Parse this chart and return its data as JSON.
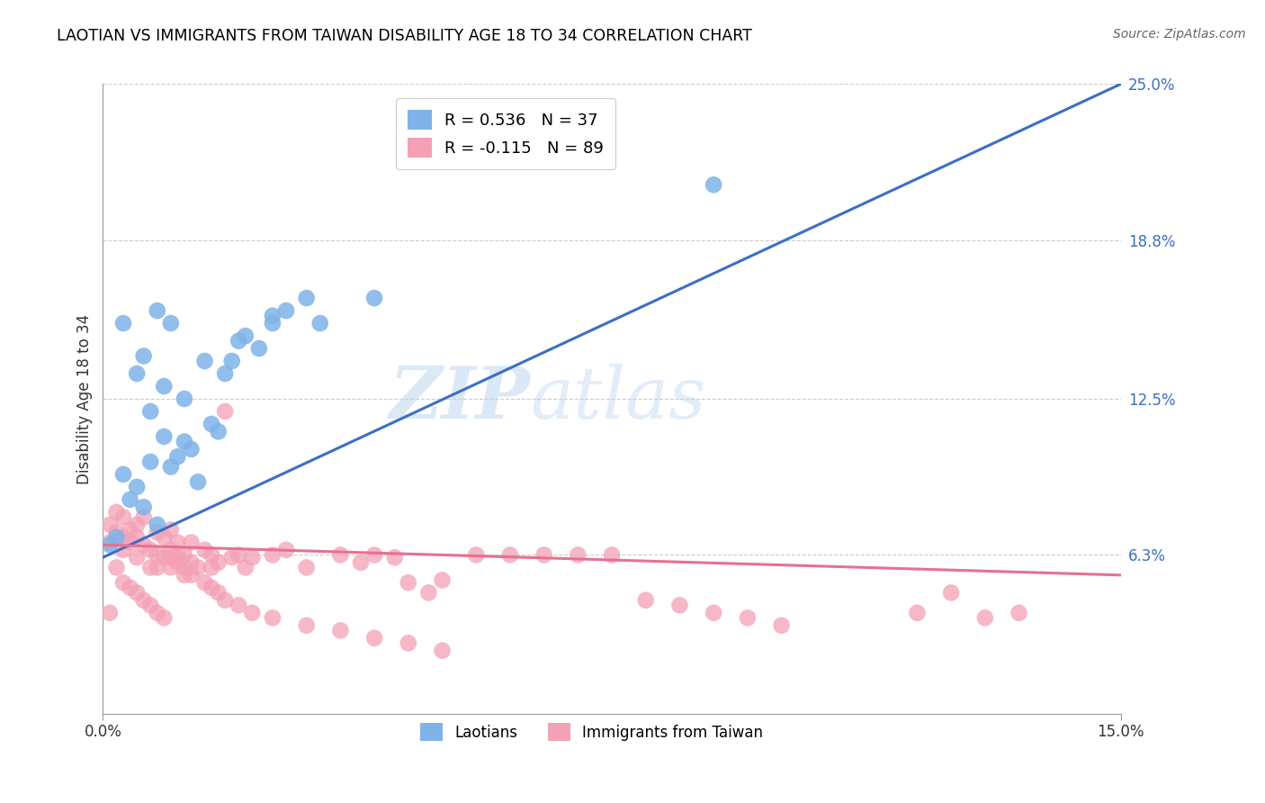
{
  "title": "LAOTIAN VS IMMIGRANTS FROM TAIWAN DISABILITY AGE 18 TO 34 CORRELATION CHART",
  "source": "Source: ZipAtlas.com",
  "ylabel": "Disability Age 18 to 34",
  "x_min": 0.0,
  "x_max": 0.15,
  "y_min": 0.0,
  "y_max": 0.25,
  "y_tick_labels_right": [
    "25.0%",
    "18.8%",
    "12.5%",
    "6.3%"
  ],
  "y_tick_vals_right": [
    0.25,
    0.188,
    0.125,
    0.063
  ],
  "watermark": "ZIPatlas",
  "blue_R": 0.536,
  "blue_N": 37,
  "pink_R": -0.115,
  "pink_N": 89,
  "blue_color": "#7FB3E8",
  "pink_color": "#F4A0B5",
  "blue_line_color": "#3B6FC4",
  "pink_line_color": "#E87090",
  "legend_blue_label": "R = 0.536   N = 37",
  "legend_pink_label": "R = -0.115   N = 89",
  "legend_label_laotians": "Laotians",
  "legend_label_taiwan": "Immigrants from Taiwan",
  "blue_line_x0": 0.0,
  "blue_line_y0": 0.062,
  "blue_line_x1": 0.15,
  "blue_line_y1": 0.25,
  "pink_line_x0": 0.0,
  "pink_line_y0": 0.067,
  "pink_line_x1": 0.15,
  "pink_line_y1": 0.055,
  "blue_x": [
    0.001,
    0.002,
    0.003,
    0.004,
    0.005,
    0.006,
    0.007,
    0.008,
    0.009,
    0.01,
    0.011,
    0.012,
    0.013,
    0.014,
    0.016,
    0.017,
    0.018,
    0.019,
    0.021,
    0.023,
    0.025,
    0.027,
    0.03,
    0.032,
    0.003,
    0.005,
    0.007,
    0.009,
    0.012,
    0.015,
    0.02,
    0.025,
    0.008,
    0.01,
    0.006,
    0.04,
    0.09
  ],
  "blue_y": [
    0.067,
    0.07,
    0.095,
    0.085,
    0.09,
    0.082,
    0.1,
    0.075,
    0.11,
    0.098,
    0.102,
    0.108,
    0.105,
    0.092,
    0.115,
    0.112,
    0.135,
    0.14,
    0.15,
    0.145,
    0.155,
    0.16,
    0.165,
    0.155,
    0.155,
    0.135,
    0.12,
    0.13,
    0.125,
    0.14,
    0.148,
    0.158,
    0.16,
    0.155,
    0.142,
    0.165,
    0.21
  ],
  "pink_x": [
    0.001,
    0.001,
    0.002,
    0.002,
    0.003,
    0.003,
    0.003,
    0.004,
    0.004,
    0.005,
    0.005,
    0.005,
    0.006,
    0.006,
    0.007,
    0.007,
    0.008,
    0.008,
    0.008,
    0.009,
    0.009,
    0.01,
    0.01,
    0.01,
    0.011,
    0.011,
    0.012,
    0.012,
    0.013,
    0.013,
    0.014,
    0.015,
    0.016,
    0.016,
    0.017,
    0.018,
    0.019,
    0.02,
    0.021,
    0.022,
    0.025,
    0.027,
    0.03,
    0.035,
    0.038,
    0.04,
    0.043,
    0.045,
    0.048,
    0.05,
    0.055,
    0.06,
    0.065,
    0.07,
    0.075,
    0.08,
    0.085,
    0.09,
    0.095,
    0.1,
    0.12,
    0.125,
    0.13,
    0.135,
    0.002,
    0.003,
    0.004,
    0.005,
    0.006,
    0.007,
    0.008,
    0.009,
    0.01,
    0.011,
    0.012,
    0.013,
    0.015,
    0.016,
    0.017,
    0.018,
    0.02,
    0.022,
    0.025,
    0.03,
    0.035,
    0.04,
    0.045,
    0.05,
    0.001
  ],
  "pink_y": [
    0.068,
    0.075,
    0.072,
    0.08,
    0.078,
    0.07,
    0.065,
    0.073,
    0.068,
    0.07,
    0.062,
    0.075,
    0.067,
    0.078,
    0.065,
    0.058,
    0.072,
    0.063,
    0.058,
    0.07,
    0.062,
    0.065,
    0.058,
    0.073,
    0.062,
    0.068,
    0.063,
    0.055,
    0.06,
    0.068,
    0.058,
    0.065,
    0.063,
    0.058,
    0.06,
    0.12,
    0.062,
    0.063,
    0.058,
    0.062,
    0.063,
    0.065,
    0.058,
    0.063,
    0.06,
    0.063,
    0.062,
    0.052,
    0.048,
    0.053,
    0.063,
    0.063,
    0.063,
    0.063,
    0.063,
    0.045,
    0.043,
    0.04,
    0.038,
    0.035,
    0.04,
    0.048,
    0.038,
    0.04,
    0.058,
    0.052,
    0.05,
    0.048,
    0.045,
    0.043,
    0.04,
    0.038,
    0.062,
    0.06,
    0.058,
    0.055,
    0.052,
    0.05,
    0.048,
    0.045,
    0.043,
    0.04,
    0.038,
    0.035,
    0.033,
    0.03,
    0.028,
    0.025,
    0.04
  ]
}
